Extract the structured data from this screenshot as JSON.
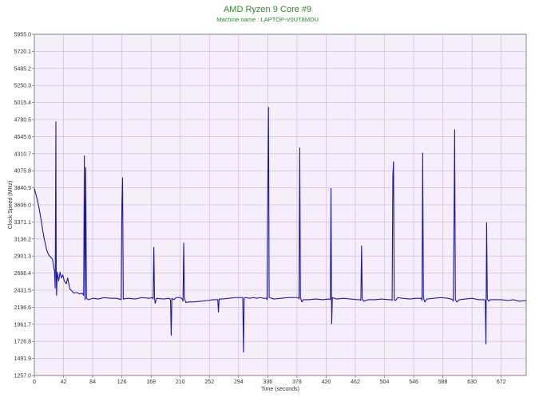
{
  "chart_data": {
    "type": "line",
    "title": "AMD Ryzen 9 Core #9",
    "subtitle": "Machine name : LAPTOP-V0UT8MDU",
    "xlabel": "Time (seconds)",
    "ylabel": "Clock Speed (MHz)",
    "xlim": [
      0,
      708
    ],
    "ylim": [
      1257.0,
      5955.0
    ],
    "x_ticks": [
      0,
      42,
      84,
      126,
      168,
      210,
      252,
      294,
      336,
      378,
      420,
      462,
      504,
      546,
      588,
      630,
      672
    ],
    "y_ticks": [
      1257.0,
      1491.9,
      1726.8,
      1961.7,
      2196.6,
      2431.5,
      2666.4,
      2901.3,
      3136.2,
      3371.1,
      3606.0,
      3840.9,
      4075.8,
      4310.7,
      4545.6,
      4780.5,
      5015.4,
      5250.3,
      5485.2,
      5720.1,
      5955.0
    ],
    "grid": true,
    "legend": "none",
    "colors": {
      "line": "#1a1aa0",
      "plot_background": "#f6eefb",
      "grid": "#c9b5d6",
      "title": "#2e8b2e"
    },
    "series": [
      {
        "values": [
          [
            0,
            3830
          ],
          [
            2,
            3760
          ],
          [
            4,
            3690
          ],
          [
            6,
            3600
          ],
          [
            8,
            3500
          ],
          [
            10,
            3380
          ],
          [
            12,
            3260
          ],
          [
            14,
            3150
          ],
          [
            16,
            3060
          ],
          [
            18,
            2980
          ],
          [
            20,
            2930
          ],
          [
            22,
            2900
          ],
          [
            24,
            2880
          ],
          [
            26,
            2860
          ],
          [
            28,
            2740
          ],
          [
            29,
            2700
          ],
          [
            30,
            2460
          ],
          [
            30.5,
            3500
          ],
          [
            31,
            4750
          ],
          [
            31.5,
            2700
          ],
          [
            32,
            2360
          ],
          [
            33,
            2680
          ],
          [
            35,
            2560
          ],
          [
            37,
            2680
          ],
          [
            39,
            2600
          ],
          [
            41,
            2640
          ],
          [
            43,
            2560
          ],
          [
            46,
            2520
          ],
          [
            48,
            2600
          ],
          [
            51,
            2450
          ],
          [
            54,
            2420
          ],
          [
            57,
            2390
          ],
          [
            61,
            2400
          ],
          [
            65,
            2380
          ],
          [
            69,
            2390
          ],
          [
            71,
            2360
          ],
          [
            72,
            4280
          ],
          [
            73,
            2300
          ],
          [
            74,
            4120
          ],
          [
            75,
            2320
          ],
          [
            78,
            2300
          ],
          [
            84,
            2320
          ],
          [
            92,
            2310
          ],
          [
            100,
            2330
          ],
          [
            110,
            2320
          ],
          [
            118,
            2320
          ],
          [
            122,
            2310
          ],
          [
            125,
            2300
          ],
          [
            126,
            3600
          ],
          [
            127,
            3980
          ],
          [
            128,
            2310
          ],
          [
            135,
            2320
          ],
          [
            145,
            2310
          ],
          [
            155,
            2330
          ],
          [
            165,
            2320
          ],
          [
            170,
            2330
          ],
          [
            171,
            2310
          ],
          [
            172,
            3020
          ],
          [
            173,
            2320
          ],
          [
            174,
            2250
          ],
          [
            176,
            2320
          ],
          [
            186,
            2310
          ],
          [
            194,
            2320
          ],
          [
            196,
            2300
          ],
          [
            197,
            1810
          ],
          [
            198,
            2320
          ],
          [
            201,
            2300
          ],
          [
            204,
            2330
          ],
          [
            210,
            2330
          ],
          [
            213,
            2310
          ],
          [
            214,
            2280
          ],
          [
            215,
            3080
          ],
          [
            216,
            2330
          ],
          [
            218,
            2260
          ],
          [
            222,
            2270
          ],
          [
            230,
            2270
          ],
          [
            240,
            2280
          ],
          [
            250,
            2290
          ],
          [
            257,
            2300
          ],
          [
            262,
            2300
          ],
          [
            264,
            2300
          ],
          [
            265,
            2130
          ],
          [
            266,
            2310
          ],
          [
            270,
            2310
          ],
          [
            280,
            2320
          ],
          [
            290,
            2330
          ],
          [
            298,
            2330
          ],
          [
            300,
            2330
          ],
          [
            301,
            1580
          ],
          [
            302,
            2320
          ],
          [
            304,
            2330
          ],
          [
            310,
            2320
          ],
          [
            315,
            2330
          ],
          [
            320,
            2320
          ],
          [
            325,
            2330
          ],
          [
            330,
            2320
          ],
          [
            334,
            2320
          ],
          [
            335,
            2300
          ],
          [
            336,
            3800
          ],
          [
            337,
            4950
          ],
          [
            338,
            2330
          ],
          [
            345,
            2310
          ],
          [
            355,
            2320
          ],
          [
            365,
            2330
          ],
          [
            375,
            2330
          ],
          [
            380,
            2330
          ],
          [
            381,
            2310
          ],
          [
            382,
            4390
          ],
          [
            383,
            2330
          ],
          [
            385,
            2270
          ],
          [
            387,
            2300
          ],
          [
            395,
            2300
          ],
          [
            405,
            2310
          ],
          [
            415,
            2300
          ],
          [
            424,
            2310
          ],
          [
            426,
            2300
          ],
          [
            427,
            3830
          ],
          [
            428,
            1970
          ],
          [
            429,
            2330
          ],
          [
            435,
            2310
          ],
          [
            445,
            2320
          ],
          [
            455,
            2310
          ],
          [
            465,
            2300
          ],
          [
            469,
            2300
          ],
          [
            470,
            2290
          ],
          [
            471,
            3040
          ],
          [
            472,
            2310
          ],
          [
            474,
            2280
          ],
          [
            480,
            2300
          ],
          [
            490,
            2300
          ],
          [
            500,
            2310
          ],
          [
            510,
            2300
          ],
          [
            514,
            2300
          ],
          [
            515,
            2290
          ],
          [
            516,
            4000
          ],
          [
            517,
            4200
          ],
          [
            518,
            2300
          ],
          [
            520,
            2290
          ],
          [
            523,
            2330
          ],
          [
            530,
            2320
          ],
          [
            540,
            2310
          ],
          [
            550,
            2320
          ],
          [
            557,
            2320
          ],
          [
            558,
            2290
          ],
          [
            559,
            4320
          ],
          [
            560,
            2330
          ],
          [
            562,
            2270
          ],
          [
            565,
            2310
          ],
          [
            575,
            2320
          ],
          [
            585,
            2330
          ],
          [
            595,
            2320
          ],
          [
            600,
            2310
          ],
          [
            602,
            2300
          ],
          [
            603,
            2280
          ],
          [
            604,
            3200
          ],
          [
            605,
            4640
          ],
          [
            606,
            2300
          ],
          [
            608,
            2270
          ],
          [
            612,
            2300
          ],
          [
            620,
            2310
          ],
          [
            630,
            2320
          ],
          [
            640,
            2300
          ],
          [
            648,
            2300
          ],
          [
            649,
            2290
          ],
          [
            650,
            1690
          ],
          [
            651,
            3360
          ],
          [
            652,
            2310
          ],
          [
            654,
            2280
          ],
          [
            656,
            2300
          ],
          [
            664,
            2300
          ],
          [
            672,
            2300
          ],
          [
            682,
            2290
          ],
          [
            690,
            2300
          ],
          [
            698,
            2280
          ],
          [
            708,
            2290
          ]
        ]
      }
    ]
  }
}
